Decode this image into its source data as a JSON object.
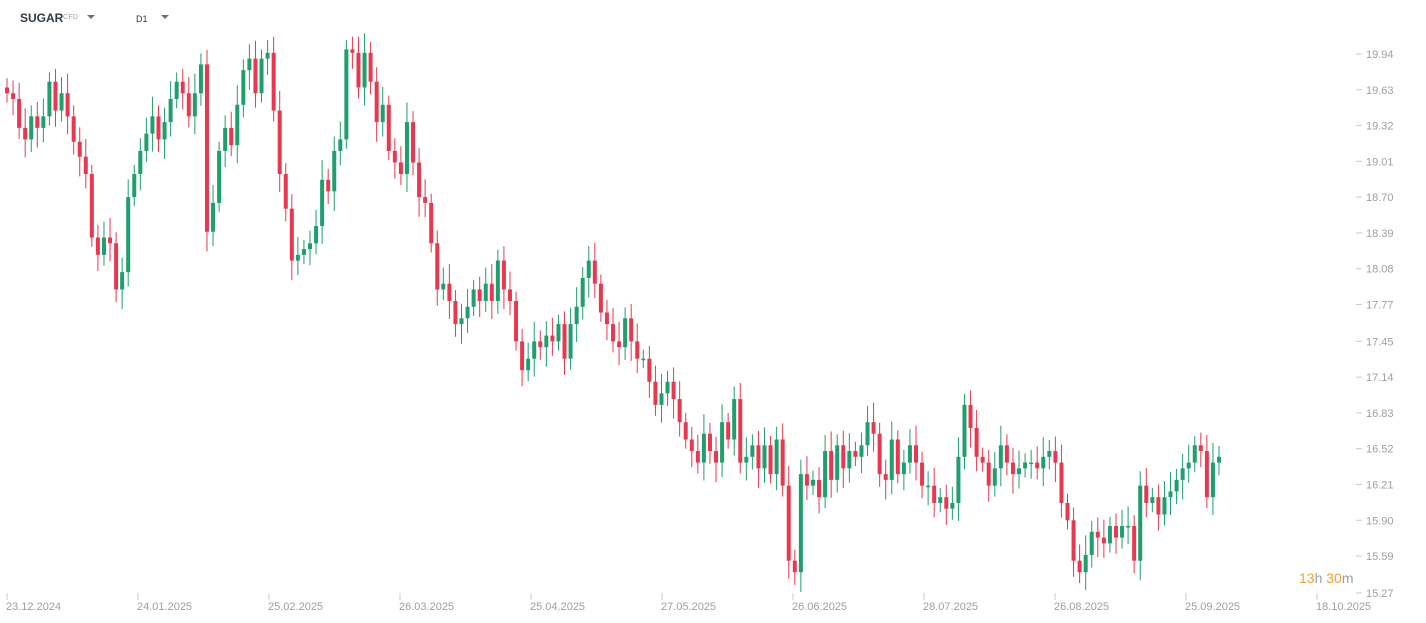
{
  "toolbar": {
    "symbol": "SUGAR",
    "symbol_type": "CFD",
    "timeframe": "D1"
  },
  "countdown": {
    "h_value": "13",
    "h_unit": "h",
    "m_value": "30",
    "m_unit": "m"
  },
  "colors": {
    "up": "#1f9e6e",
    "down": "#e8384f",
    "axis_text": "#9aa0a6",
    "countdown": "#f0a030"
  },
  "chart_data": {
    "type": "candlestick",
    "ylim": [
      15.27,
      20.12
    ],
    "y_ticks": [
      "19.94",
      "19.63",
      "19.32",
      "19.01",
      "18.70",
      "18.39",
      "18.08",
      "17.77",
      "17.45",
      "17.14",
      "16.83",
      "16.52",
      "16.21",
      "15.90",
      "15.59",
      "15.27"
    ],
    "x_ticks": [
      "23.12.2024",
      "24.01.2025",
      "25.02.2025",
      "26.03.2025",
      "25.04.2025",
      "27.05.2025",
      "26.06.2025",
      "28.07.2025",
      "26.08.2025",
      "25.09.2025",
      "18.10.2025"
    ],
    "closes": [
      19.6,
      19.55,
      19.3,
      19.2,
      19.4,
      19.3,
      19.4,
      19.7,
      19.45,
      19.6,
      19.4,
      19.18,
      19.05,
      18.9,
      18.35,
      18.2,
      18.35,
      18.3,
      17.9,
      18.05,
      18.7,
      18.9,
      19.1,
      19.25,
      19.4,
      19.2,
      19.35,
      19.55,
      19.7,
      19.6,
      19.4,
      19.6,
      19.85,
      18.4,
      18.65,
      19.1,
      19.3,
      19.15,
      19.5,
      19.8,
      19.9,
      19.6,
      19.9,
      19.95,
      19.45,
      18.9,
      18.6,
      18.15,
      18.2,
      18.25,
      18.3,
      18.45,
      18.85,
      18.75,
      19.1,
      19.2,
      19.98,
      19.95,
      19.65,
      19.95,
      19.7,
      19.35,
      19.5,
      19.1,
      19.0,
      18.9,
      19.35,
      19.0,
      18.7,
      18.65,
      18.3,
      17.9,
      17.95,
      17.8,
      17.6,
      17.65,
      17.75,
      17.9,
      17.8,
      17.95,
      17.8,
      18.15,
      17.9,
      17.8,
      17.45,
      17.2,
      17.3,
      17.45,
      17.4,
      17.5,
      17.45,
      17.6,
      17.3,
      17.6,
      17.75,
      18.0,
      18.15,
      17.95,
      17.7,
      17.6,
      17.45,
      17.4,
      17.65,
      17.45,
      17.3,
      17.3,
      17.1,
      16.9,
      17.0,
      17.1,
      16.95,
      16.75,
      16.6,
      16.5,
      16.4,
      16.65,
      16.5,
      16.4,
      16.75,
      16.6,
      16.95,
      16.4,
      16.45,
      16.55,
      16.35,
      16.55,
      16.3,
      16.6,
      16.2,
      15.55,
      15.45,
      16.3,
      16.2,
      16.25,
      16.1,
      16.5,
      16.25,
      16.55,
      16.35,
      16.5,
      16.45,
      16.55,
      16.75,
      16.65,
      16.3,
      16.25,
      16.6,
      16.3,
      16.4,
      16.55,
      16.4,
      16.2,
      16.2,
      16.05,
      16.1,
      16.0,
      16.05,
      16.45,
      16.9,
      16.7,
      16.45,
      16.4,
      16.2,
      16.35,
      16.55,
      16.4,
      16.3,
      16.35,
      16.4,
      16.4,
      16.35,
      16.45,
      16.5,
      16.4,
      16.05,
      15.9,
      15.55,
      15.45,
      15.6,
      15.8,
      15.75,
      15.7,
      15.85,
      15.75,
      15.85,
      15.85,
      15.55,
      16.2,
      16.05,
      16.1,
      15.95,
      16.1,
      16.15,
      16.25,
      16.35,
      16.4,
      16.55,
      16.5,
      16.1,
      16.4,
      16.45
    ],
    "y_tick_unit_note": ""
  }
}
